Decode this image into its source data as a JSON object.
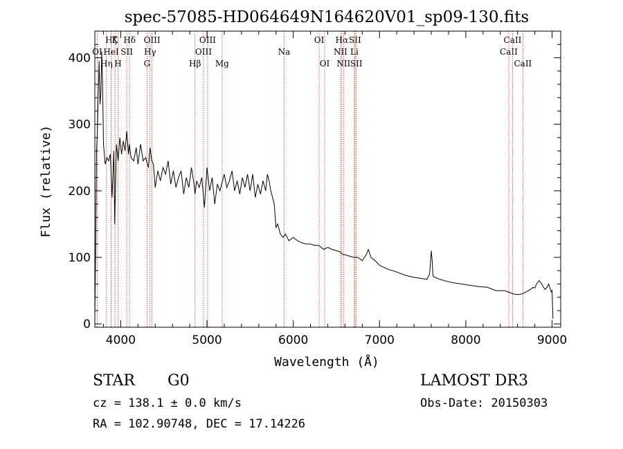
{
  "chart_data": {
    "type": "line",
    "title": "spec-57085-HD064649N164620V01_sp09-130.fits",
    "xlabel": "Wavelength (Å)",
    "ylabel": "Flux (relative)",
    "xlim": [
      3700,
      9100
    ],
    "ylim": [
      -5,
      440
    ],
    "xticks": [
      4000,
      5000,
      6000,
      7000,
      8000,
      9000
    ],
    "yticks": [
      0,
      100,
      200,
      300,
      400
    ],
    "grid": false,
    "series": [
      {
        "name": "Flux",
        "x": [
          3700,
          3710,
          3720,
          3730,
          3740,
          3750,
          3760,
          3770,
          3780,
          3790,
          3800,
          3820,
          3840,
          3860,
          3880,
          3900,
          3920,
          3930,
          3950,
          3970,
          3990,
          4010,
          4030,
          4050,
          4070,
          4090,
          4100,
          4120,
          4150,
          4180,
          4200,
          4230,
          4260,
          4290,
          4320,
          4340,
          4360,
          4380,
          4400,
          4430,
          4460,
          4490,
          4520,
          4550,
          4580,
          4610,
          4640,
          4670,
          4700,
          4730,
          4760,
          4790,
          4820,
          4850,
          4861,
          4880,
          4910,
          4940,
          4970,
          5000,
          5030,
          5060,
          5090,
          5120,
          5150,
          5180,
          5200,
          5230,
          5260,
          5290,
          5320,
          5350,
          5380,
          5410,
          5440,
          5470,
          5500,
          5530,
          5560,
          5590,
          5620,
          5650,
          5680,
          5700,
          5720,
          5740,
          5760,
          5780,
          5800,
          5820,
          5850,
          5880,
          5910,
          5950,
          6000,
          6050,
          6100,
          6150,
          6200,
          6250,
          6300,
          6350,
          6400,
          6450,
          6500,
          6550,
          6563,
          6600,
          6650,
          6700,
          6750,
          6800,
          6850,
          6870,
          6900,
          6950,
          7000,
          7100,
          7200,
          7300,
          7400,
          7500,
          7550,
          7580,
          7600,
          7610,
          7620,
          7640,
          7680,
          7750,
          7850,
          7950,
          8050,
          8150,
          8250,
          8350,
          8450,
          8550,
          8600,
          8650,
          8700,
          8750,
          8780,
          8800,
          8820,
          8850,
          8880,
          8900,
          8920,
          8940,
          8960,
          8990,
          9000,
          9010
        ],
        "y": [
          10,
          120,
          260,
          290,
          350,
          395,
          330,
          345,
          410,
          360,
          270,
          240,
          250,
          245,
          255,
          190,
          260,
          150,
          270,
          245,
          280,
          255,
          275,
          260,
          290,
          255,
          270,
          250,
          245,
          265,
          240,
          270,
          245,
          250,
          235,
          265,
          245,
          240,
          205,
          230,
          215,
          235,
          225,
          245,
          210,
          230,
          205,
          220,
          230,
          195,
          220,
          205,
          235,
          210,
          195,
          215,
          205,
          220,
          175,
          235,
          200,
          220,
          180,
          210,
          200,
          215,
          225,
          205,
          215,
          230,
          200,
          215,
          195,
          220,
          205,
          225,
          200,
          225,
          190,
          210,
          195,
          215,
          200,
          225,
          215,
          200,
          190,
          180,
          145,
          150,
          135,
          130,
          135,
          125,
          130,
          125,
          122,
          120,
          120,
          118,
          118,
          112,
          115,
          112,
          110,
          108,
          105,
          104,
          102,
          100,
          100,
          95,
          105,
          112,
          100,
          95,
          88,
          82,
          78,
          73,
          70,
          68,
          67,
          75,
          110,
          95,
          72,
          70,
          68,
          65,
          62,
          60,
          58,
          56,
          55,
          50,
          50,
          45,
          44,
          45,
          48,
          52,
          55,
          54,
          60,
          65,
          60,
          55,
          52,
          55,
          60,
          48,
          50,
          8
        ]
      }
    ],
    "lines": [
      {
        "label": "OI",
        "wl": 3727,
        "row": 2
      },
      {
        "label": "Hη",
        "wl": 3835,
        "row": 3
      },
      {
        "label": "Hζ",
        "wl": 3889,
        "row": 1
      },
      {
        "label": "HeI",
        "wl": 3889,
        "row": 2
      },
      {
        "label": "K",
        "wl": 3934,
        "row": 1
      },
      {
        "label": "H",
        "wl": 3969,
        "row": 3
      },
      {
        "label": "SII",
        "wl": 4070,
        "row": 2
      },
      {
        "label": "Hδ",
        "wl": 4102,
        "row": 1
      },
      {
        "label": "OIII",
        "wl": 4363,
        "row": 1
      },
      {
        "label": "Hγ",
        "wl": 4340,
        "row": 2
      },
      {
        "label": "G",
        "wl": 4305,
        "row": 3
      },
      {
        "label": "Hβ",
        "wl": 4861,
        "row": 3
      },
      {
        "label": "OIII",
        "wl": 4959,
        "row": 2
      },
      {
        "label": "OIII",
        "wl": 5007,
        "row": 1
      },
      {
        "label": "Mg",
        "wl": 5175,
        "row": 3
      },
      {
        "label": "Na",
        "wl": 5894,
        "row": 2
      },
      {
        "label": "OI",
        "wl": 6300,
        "row": 1
      },
      {
        "label": "OI",
        "wl": 6364,
        "row": 3
      },
      {
        "label": "NII",
        "wl": 6548,
        "row": 2
      },
      {
        "label": "Hα",
        "wl": 6563,
        "row": 1
      },
      {
        "label": "NII",
        "wl": 6583,
        "row": 3
      },
      {
        "label": "Li",
        "wl": 6708,
        "row": 2
      },
      {
        "label": "SII",
        "wl": 6716,
        "row": 1
      },
      {
        "label": "SII",
        "wl": 6731,
        "row": 3
      },
      {
        "label": "CaII",
        "wl": 8498,
        "row": 2
      },
      {
        "label": "CaII",
        "wl": 8542,
        "row": 1
      },
      {
        "label": "CaII",
        "wl": 8662,
        "row": 3
      }
    ]
  },
  "info": {
    "object_type": "STAR",
    "subclass": "G0",
    "survey": "LAMOST DR3",
    "cz": "cz = 138.1 ± 0.0 km/s",
    "obs_date": "Obs-Date: 20150303",
    "coords": "RA = 102.90748, DEC =  17.14226"
  },
  "colors": {
    "axis": "#000000",
    "spectrum": "#000000",
    "line_marker": "#c0392b"
  }
}
